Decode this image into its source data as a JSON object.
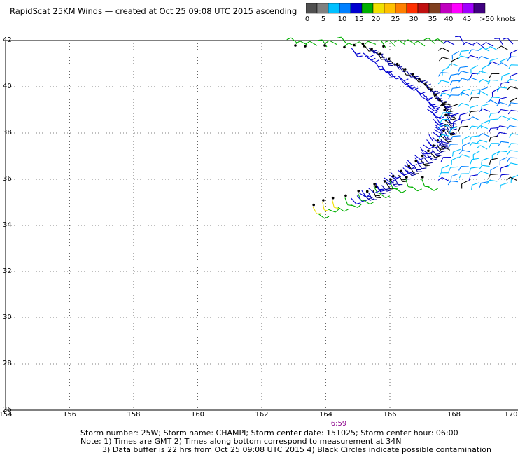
{
  "title": "RapidScat 25KM Winds  —  created at Oct 25 09:08 UTC 2015  ascending",
  "colorbar": {
    "colors": [
      "#505050",
      "#808080",
      "#00c0ff",
      "#0080ff",
      "#0000d0",
      "#00b000",
      "#f0e000",
      "#ffc000",
      "#ff8000",
      "#ff3000",
      "#c01010",
      "#804020",
      "#c000c0",
      "#ff00ff",
      "#a000ff",
      "#400080"
    ],
    "labels": [
      "0",
      "5",
      "10",
      "15",
      "20",
      "25",
      "30",
      "35",
      "40",
      "45",
      ">50 knots"
    ]
  },
  "map": {
    "lon_labels": [
      "154",
      "156",
      "158",
      "160",
      "162",
      "164",
      "166",
      "168",
      "170"
    ],
    "lat_labels": [
      "42",
      "40",
      "38",
      "36",
      "34",
      "32",
      "30",
      "28",
      "26"
    ],
    "lon_range": [
      154,
      170
    ],
    "lat_range": [
      26,
      42
    ]
  },
  "time_label": "6:59",
  "footer": {
    "line1": "Storm number: 25W;  Storm name: CHAMPI;  Storm center date: 151025;  Storm center hour: 06:00",
    "line2": "Note: 1) Times are GMT  2) Times along bottom correspond to measurement at 34N",
    "line3": "3) Data buffer is 22 hrs from Oct 25 09:08 UTC 2015   4) Black Circles indicate possible contamination"
  }
}
